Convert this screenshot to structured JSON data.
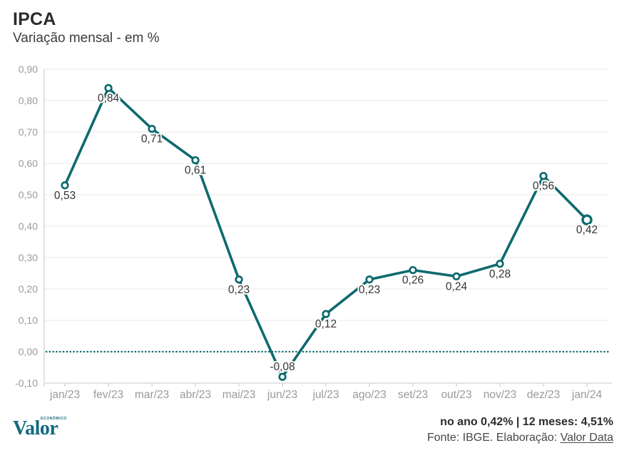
{
  "header": {
    "title": "IPCA",
    "subtitle": "Variação mensal - em %"
  },
  "chart_data": {
    "type": "line",
    "title": "IPCA",
    "subtitle": "Variação mensal - em %",
    "categories": [
      "jan/23",
      "fev/23",
      "mar/23",
      "abr/23",
      "mai/23",
      "jun/23",
      "jul/23",
      "ago/23",
      "set/23",
      "out/23",
      "nov/23",
      "dez/23",
      "jan/24"
    ],
    "series": [
      {
        "name": "IPCA variação mensal (%)",
        "values": [
          0.53,
          0.84,
          0.71,
          0.61,
          0.23,
          -0.08,
          0.12,
          0.23,
          0.26,
          0.24,
          0.28,
          0.56,
          0.42
        ]
      }
    ],
    "point_labels": [
      "0,53",
      "0,84",
      "0,71",
      "0,61",
      "0,23",
      "-0,08",
      "0,12",
      "0,23",
      "0,26",
      "0,24",
      "0,28",
      "0,56",
      "0,42"
    ],
    "ylim": [
      -0.1,
      0.9
    ],
    "yticks": [
      {
        "value": -0.1,
        "label": "-0,10"
      },
      {
        "value": 0.0,
        "label": "0,00"
      },
      {
        "value": 0.1,
        "label": "0,10"
      },
      {
        "value": 0.2,
        "label": "0,20"
      },
      {
        "value": 0.3,
        "label": "0,30"
      },
      {
        "value": 0.4,
        "label": "0,40"
      },
      {
        "value": 0.5,
        "label": "0,50"
      },
      {
        "value": 0.6,
        "label": "0,60"
      },
      {
        "value": 0.7,
        "label": "0,70"
      },
      {
        "value": 0.8,
        "label": "0,80"
      },
      {
        "value": 0.9,
        "label": "0,90"
      }
    ],
    "grid": true,
    "legend": "none",
    "zero_baseline": {
      "value": 0.0,
      "style": "dotted"
    },
    "last_point_emphasis": true,
    "colors": {
      "line": "#0e6a6e",
      "marker_fill": "#ffffff",
      "grid": "#e9e9e9",
      "axis": "#d2d2d2",
      "tick_label": "#9a9a9a",
      "point_label": "#333333"
    }
  },
  "footer": {
    "logo": {
      "text": "Valor",
      "superscript": "econômico"
    },
    "summary": "no ano 0,42% | 12 meses: 4,51%",
    "source_prefix": "Fonte: IBGE. Elaboração: ",
    "source_link": "Valor Data"
  }
}
